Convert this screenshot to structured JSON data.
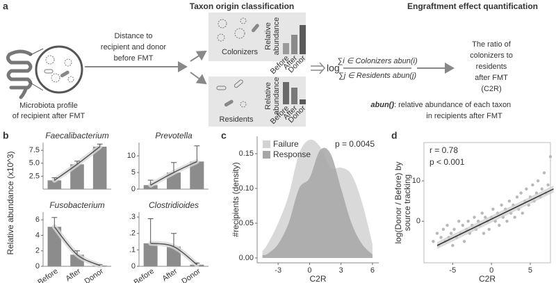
{
  "panel_labels": [
    "a",
    "b",
    "c",
    "d"
  ],
  "diagram": {
    "heading_left": "Taxon origin classification",
    "heading_right": "Engraftment effect quantification",
    "profile_label": [
      "Microbiota profile",
      "of recipient after FMT"
    ],
    "distance_label": [
      "Distance to",
      "recipient and donor",
      "before FMT"
    ],
    "colonizers": {
      "label": "Colonizers",
      "axis_label": [
        "Relative",
        "abundance"
      ],
      "bar_labels": [
        "Before",
        "After",
        "Donor"
      ]
    },
    "residents": {
      "label": "Residents",
      "axis_label": [
        "Relative",
        "abundance"
      ],
      "bar_labels": [
        "Before",
        "After",
        "Donor"
      ]
    },
    "formula": {
      "log": "log",
      "numerator": "∑i ∈ Colonizers abun(i)",
      "denominator": "∑j ∈ Residents abun(j)"
    },
    "result_label": [
      "The ratio of",
      "colonizers to",
      "residents",
      "after FMT",
      "(C2R)"
    ],
    "abun_term": "abun()",
    "abun_note": [
      ": relative abundance of each taxon",
      "in recipients after FMT"
    ]
  },
  "shared_ylabel": "Relative abundance (x10^3)",
  "chart_data": [
    {
      "type": "bar",
      "title": "Faecalibacterium",
      "categories": [
        null,
        null,
        null
      ],
      "values": [
        1.7,
        4.8,
        8.2
      ],
      "errors": [
        0.5,
        0.6,
        0.5
      ],
      "color": "#8c8c8c",
      "ylim": [
        0,
        9
      ],
      "yticks": [
        2.5,
        {
          "value": 5,
          "label": "5.0"
        },
        7.5
      ]
    },
    {
      "type": "bar",
      "title": "Prevotella",
      "categories": [
        null,
        null,
        null
      ],
      "values": [
        1.2,
        5,
        8.3
      ],
      "errors": [
        1.5,
        3,
        4.7
      ],
      "color": "#8c8c8c",
      "ylim": [
        0,
        14
      ],
      "yticks": [
        0,
        5,
        10
      ]
    },
    {
      "type": "bar",
      "title": "Fusobacterium",
      "categories": [
        "Before",
        "After",
        "Donor"
      ],
      "values": [
        5.1,
        1.5,
        0.1
      ],
      "errors": [
        1.2,
        0.5,
        0.1
      ],
      "color": "#8c8c8c",
      "ylim": [
        0,
        7
      ],
      "yticks": [
        0,
        2,
        4,
        6
      ]
    },
    {
      "type": "bar",
      "title": "Clostridioides",
      "categories": [
        "Before",
        "After",
        "Donor"
      ],
      "values": [
        0.14,
        0.12,
        0.01
      ],
      "errors": [
        0.15,
        0.08,
        0.01
      ],
      "color": "#8c8c8c",
      "ylim": [
        0,
        0.33
      ],
      "yticks": [
        0,
        {
          "value": 0.1,
          "label": ".1"
        },
        {
          "value": 0.2,
          "label": ".2"
        },
        {
          "value": 0.3,
          "label": ".3"
        }
      ]
    },
    {
      "type": "density",
      "xlabel": "C2R",
      "ylabel": "#recipients (density)",
      "annotation": "p = 0.0045",
      "x": [
        -4.5,
        -4,
        -3,
        -2,
        -1,
        0,
        1,
        2,
        3,
        4,
        5,
        6
      ],
      "series": [
        {
          "name": "Failure",
          "color": "#d2d2d2",
          "values": [
            0.01,
            0.02,
            0.05,
            0.09,
            0.15,
            0.17,
            0.16,
            0.13,
            0.13,
            0.12,
            0.08,
            0.02
          ]
        },
        {
          "name": "Response",
          "color": "#a6a6a6",
          "values": [
            0.004,
            0.006,
            0.02,
            0.05,
            0.1,
            0.115,
            0.155,
            0.15,
            0.1,
            0.05,
            0.02,
            0.005
          ]
        }
      ],
      "xlim": [
        -5,
        6.6
      ],
      "xticks": [
        -3,
        0,
        3,
        6
      ],
      "ylim": [
        -0.007,
        0.175
      ],
      "yticks": [
        {
          "value": 0,
          "label": "0.00"
        },
        {
          "value": 0.05,
          "label": "0.05"
        },
        {
          "value": 0.1,
          "label": "0.10"
        },
        {
          "value": 0.15,
          "label": "0.15"
        }
      ]
    },
    {
      "type": "scatter",
      "xlabel": "C2R",
      "ylabel": [
        "log(Donor / Before) by",
        "source tracking"
      ],
      "annotations": [
        "r = 0.78",
        "p < 0.001"
      ],
      "color": "#b8b8b8",
      "x": [
        -7.5,
        -7,
        -6.8,
        -6.5,
        -6.2,
        -6,
        -5.7,
        -5.5,
        -5.2,
        -5,
        -4.8,
        -4.5,
        -4.2,
        -4,
        -3.7,
        -3.5,
        -3.2,
        -3,
        -2.8,
        -2.5,
        -2.2,
        -2,
        -1.7,
        -1.5,
        -1.2,
        -1,
        -0.8,
        -0.5,
        -0.3,
        0,
        0.2,
        0.5,
        0.8,
        1,
        1.3,
        1.5,
        1.8,
        2,
        2.3,
        2.5,
        2.8,
        3,
        3.3,
        3.5,
        3.8,
        4,
        4.3,
        4.5,
        4.8,
        5,
        5.3,
        5.5,
        5.8,
        6,
        6.3,
        6.5,
        6.8,
        7,
        7.3,
        7.6
      ],
      "y": [
        -5,
        -3,
        -6,
        -4,
        -2,
        -5,
        -1,
        -4,
        -3,
        -6,
        -2,
        -4,
        0,
        -3,
        -1,
        -5,
        -2,
        0,
        -3,
        -1,
        1,
        -2,
        0,
        -1,
        2,
        -3,
        1,
        0,
        -2,
        1,
        3,
        0,
        2,
        -1,
        4,
        1,
        3,
        0,
        5,
        2,
        4,
        1,
        6,
        3,
        7,
        2,
        5,
        8,
        4,
        6,
        9,
        5,
        7,
        10,
        6,
        8,
        12,
        7,
        9,
        16
      ],
      "fit": {
        "x": [
          -7,
          8
        ],
        "y": [
          -6,
          8
        ]
      },
      "xlim": [
        -8.7,
        7.6
      ],
      "xticks": [
        -5,
        0,
        5
      ],
      "ylim": [
        -10.3,
        19.5
      ],
      "yticks": [
        0,
        10
      ]
    }
  ]
}
